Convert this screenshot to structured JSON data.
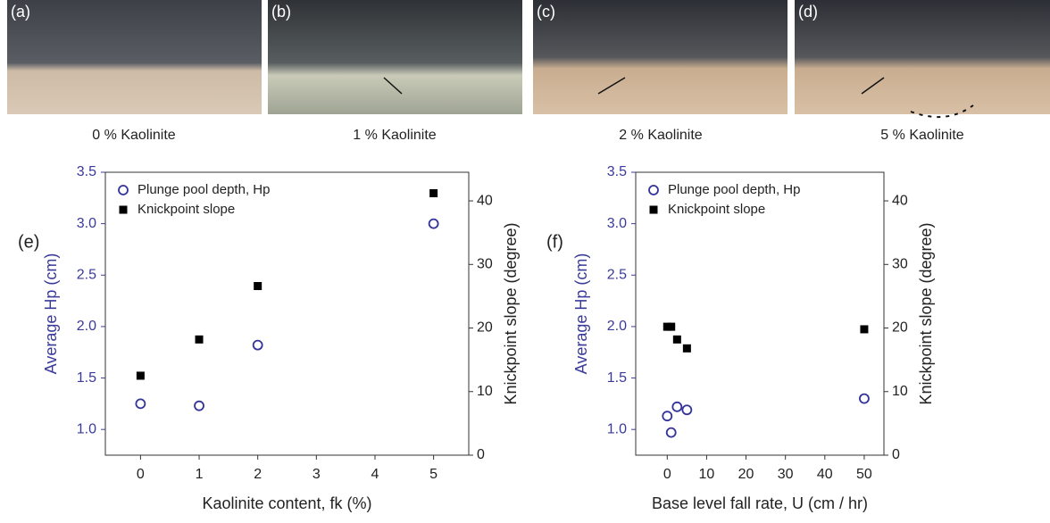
{
  "panels": [
    {
      "label": "(a)",
      "caption": "0 % Kaolinite"
    },
    {
      "label": "(b)",
      "caption": "1 % Kaolinite"
    },
    {
      "label": "(c)",
      "caption": "2 % Kaolinite"
    },
    {
      "label": "(d)",
      "caption": "5 % Kaolinite"
    }
  ],
  "chart_data": [
    {
      "type": "scatter",
      "panel_label": "(e)",
      "xlabel": "Kaolinite content, fk (%)",
      "ylabel": "Average Hp (cm)",
      "y2label": "Knickpoint slope (degree)",
      "xlim": [
        -0.6,
        5.6
      ],
      "xticks": [
        0,
        1,
        2,
        3,
        4,
        5
      ],
      "ylim": [
        0.75,
        3.5
      ],
      "yticks": [
        1.0,
        1.5,
        2.0,
        2.5,
        3.0,
        3.5
      ],
      "y2lim": [
        0,
        44.5
      ],
      "y2ticks": [
        0,
        10,
        20,
        30,
        40
      ],
      "legend": "upper left",
      "series": [
        {
          "name": "Plunge pool depth, Hp",
          "color": "#33339a",
          "marker": "circle",
          "x": [
            0,
            1,
            2,
            5
          ],
          "values": [
            1.25,
            1.23,
            1.82,
            3.0
          ]
        },
        {
          "name": "Knickpoint slope",
          "color": "#000000",
          "marker": "square",
          "axis": "y2",
          "x": [
            0,
            1,
            2,
            5
          ],
          "values": [
            12.5,
            18.2,
            26.6,
            41.2
          ]
        }
      ]
    },
    {
      "type": "scatter",
      "panel_label": "(f)",
      "xlabel": "Base level fall rate, U (cm / hr)",
      "ylabel": "Average Hp (cm)",
      "y2label": "Knickpoint slope (degree)",
      "xlim": [
        -8,
        55
      ],
      "xticks": [
        0,
        10,
        20,
        30,
        40,
        50
      ],
      "ylim": [
        0.75,
        3.5
      ],
      "yticks": [
        1.0,
        1.5,
        2.0,
        2.5,
        3.0,
        3.5
      ],
      "y2lim": [
        0,
        44.5
      ],
      "y2ticks": [
        0,
        10,
        20,
        30,
        40
      ],
      "legend": "upper left",
      "series": [
        {
          "name": "Plunge pool depth, Hp",
          "color": "#33339a",
          "marker": "circle",
          "x": [
            0,
            1,
            2.5,
            5,
            50
          ],
          "values": [
            1.13,
            0.97,
            1.22,
            1.19,
            1.3
          ]
        },
        {
          "name": "Knickpoint slope",
          "color": "#000000",
          "marker": "square",
          "axis": "y2",
          "x": [
            0,
            1,
            2.5,
            5,
            50
          ],
          "values": [
            20.2,
            20.2,
            18.2,
            16.8,
            19.8
          ]
        }
      ]
    }
  ]
}
